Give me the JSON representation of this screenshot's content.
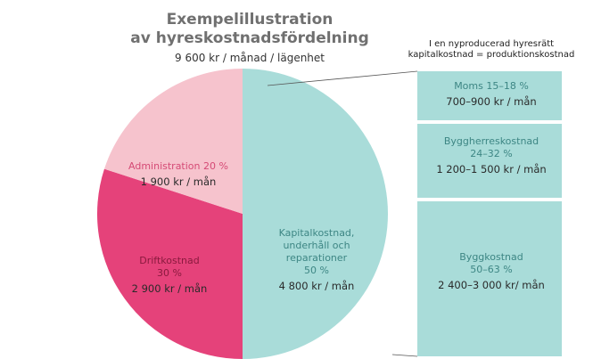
{
  "chart_data": {
    "type": "pie",
    "title_lines": [
      "Exempelillustration",
      "av hyreskostnadsfördelning"
    ],
    "subtitle": "9 600 kr / månad / lägenhet",
    "categories": [
      "Kapitalkostnad, underhåll och reparationer",
      "Driftkostnad",
      "Administration"
    ],
    "values": [
      50,
      30,
      20
    ],
    "value_labels": [
      "50 %",
      "30 %",
      "20 %"
    ],
    "amount_labels": [
      "4 800 kr / mån",
      "2 900 kr / mån",
      "1 900 kr / mån"
    ],
    "colors": [
      "#a9dcd9",
      "#e5427a",
      "#f6c3cd"
    ],
    "breakdown": {
      "title_lines": [
        "I en nyproducerad hyresrätt",
        "kapitalkostnad = produktionskostnad"
      ],
      "items": [
        {
          "name": "Moms",
          "share": "15–18 %",
          "amount": "700–900 kr / mån"
        },
        {
          "name": "Byggherreskostnad",
          "share": "24–32 %",
          "amount": "1 200–1 500 kr / mån"
        },
        {
          "name": "Byggkostnad",
          "share": "50–63 %",
          "amount": "2 400–3 000 kr/ mån"
        }
      ]
    }
  }
}
